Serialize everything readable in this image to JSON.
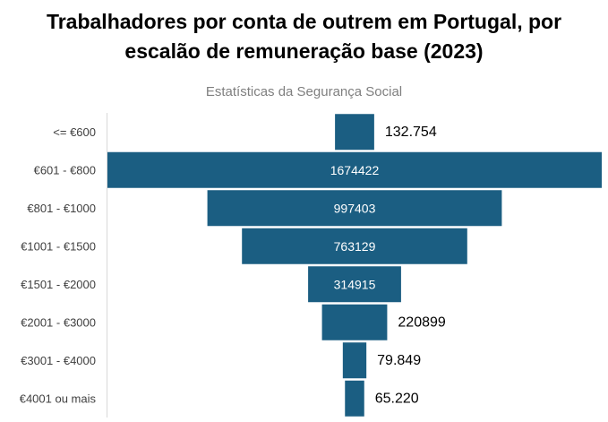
{
  "chart_data": {
    "type": "bar",
    "orientation": "horizontal-funnel",
    "title_lines": [
      "Trabalhadores por conta de outrem em Portugal, por",
      "escalão de remuneração base (2023)"
    ],
    "subtitle": "Estatísticas da Segurança Social",
    "categories": [
      "<= €600",
      "€601 - €800",
      "€801 - €1000",
      "€1001 - €1500",
      "€1501 - €2000",
      "€2001 - €3000",
      "€3001 - €4000",
      "€4001 ou mais"
    ],
    "values": [
      132754,
      1674422,
      997403,
      763129,
      314915,
      220899,
      79849,
      65220
    ],
    "value_labels": [
      "132.754",
      "1674422",
      "997403",
      "763129",
      "314915",
      "220899",
      "79.849",
      "65.220"
    ],
    "bar_color": "#1b5e82",
    "inside_label_color": "#ffffff",
    "outside_label_color": "#000000",
    "axis_line_color": "#d9d9d9",
    "category_label_color": "#404040"
  }
}
